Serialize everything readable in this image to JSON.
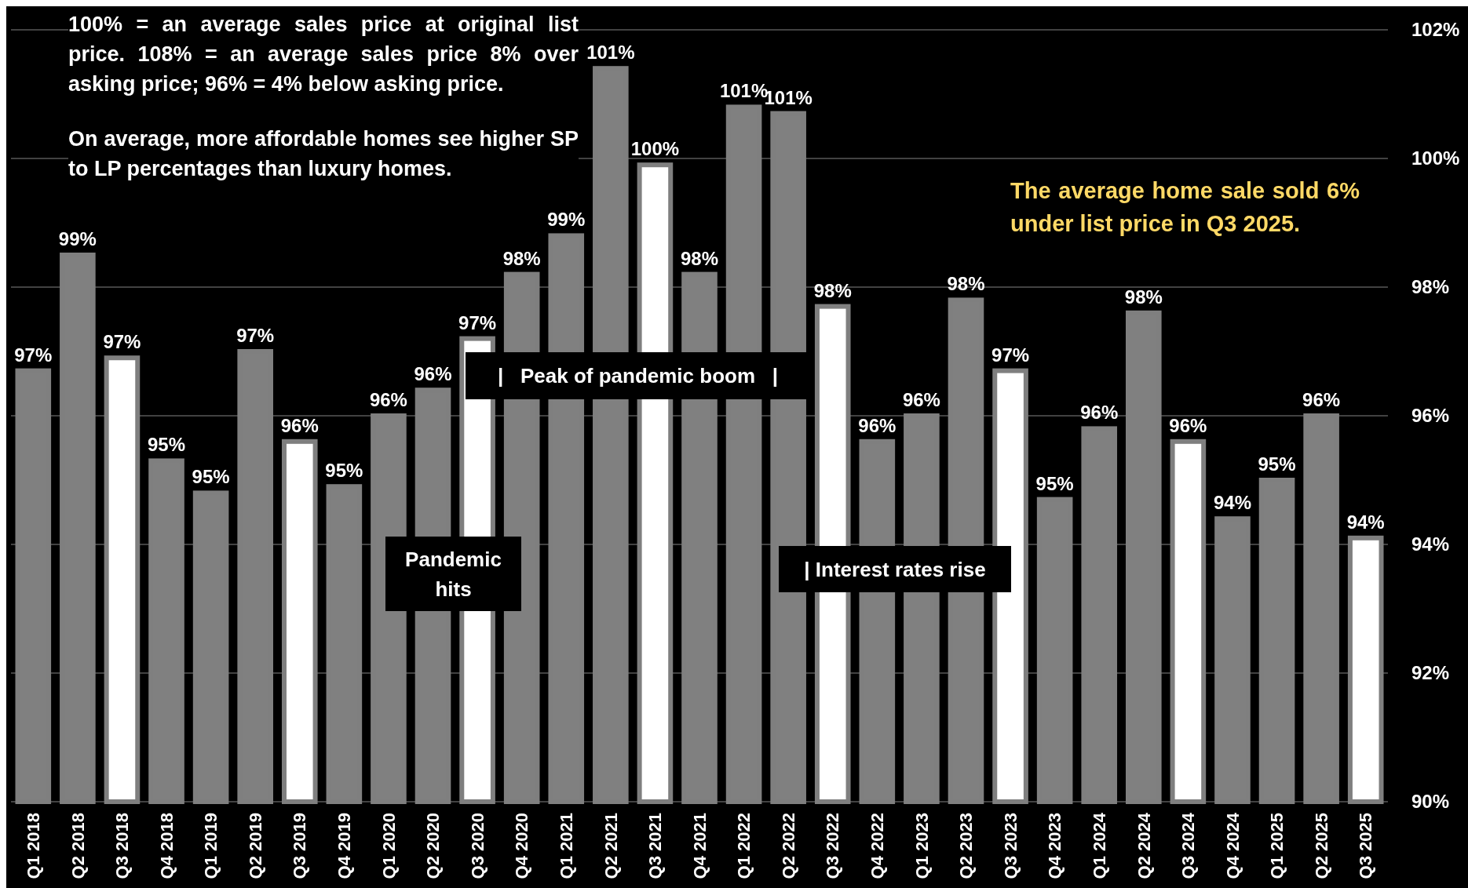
{
  "chart_data": {
    "type": "bar",
    "categories": [
      "Q1 2018",
      "Q2 2018",
      "Q3 2018",
      "Q4 2018",
      "Q1 2019",
      "Q2 2019",
      "Q3 2019",
      "Q4 2019",
      "Q1 2020",
      "Q2 2020",
      "Q3 2020",
      "Q4 2020",
      "Q1 2021",
      "Q2 2021",
      "Q3 2021",
      "Q4 2021",
      "Q1 2022",
      "Q2 2022",
      "Q3 2022",
      "Q4 2022",
      "Q1 2023",
      "Q2 2023",
      "Q3 2023",
      "Q4 2023",
      "Q1 2024",
      "Q2 2024",
      "Q3 2024",
      "Q4 2024",
      "Q1 2025",
      "Q2 2025",
      "Q3 2025"
    ],
    "values": [
      96.7,
      98.5,
      96.9,
      95.3,
      94.8,
      97.0,
      95.6,
      94.9,
      96.0,
      96.4,
      97.2,
      98.2,
      98.8,
      101.4,
      99.9,
      98.2,
      100.8,
      100.7,
      97.7,
      95.6,
      96.0,
      97.8,
      96.7,
      94.7,
      95.8,
      97.6,
      95.6,
      94.4,
      95.0,
      96.0,
      94.1
    ],
    "value_labels": [
      "97%",
      "99%",
      "97%",
      "95%",
      "95%",
      "97%",
      "96%",
      "95%",
      "96%",
      "96%",
      "97%",
      "98%",
      "99%",
      "101%",
      "100%",
      "98%",
      "101%",
      "101%",
      "98%",
      "96%",
      "96%",
      "98%",
      "97%",
      "95%",
      "96%",
      "98%",
      "96%",
      "94%",
      "95%",
      "96%",
      "94%"
    ],
    "colors": [
      "#808080",
      "#808080",
      "#ffffff",
      "#808080",
      "#808080",
      "#808080",
      "#ffffff",
      "#808080",
      "#808080",
      "#808080",
      "#ffffff",
      "#808080",
      "#808080",
      "#808080",
      "#ffffff",
      "#808080",
      "#808080",
      "#808080",
      "#ffffff",
      "#808080",
      "#808080",
      "#808080",
      "#ffffff",
      "#808080",
      "#808080",
      "#808080",
      "#ffffff",
      "#808080",
      "#808080",
      "#808080",
      "#ffffff"
    ],
    "ylim": [
      90,
      102
    ],
    "yticks": [
      {
        "value": 90,
        "label": "90%"
      },
      {
        "value": 92,
        "label": "92%"
      },
      {
        "value": 94,
        "label": "94%"
      },
      {
        "value": 96,
        "label": "96%"
      },
      {
        "value": 98,
        "label": "98%"
      },
      {
        "value": 100,
        "label": "100%"
      },
      {
        "value": 102,
        "label": "102%"
      }
    ],
    "grid": "y",
    "annotations": [
      "100% = an average sales price at original list price. 108% = an average sales price 8% over asking price; 96% = 4% below asking price.",
      "On average, more affordable homes see higher SP to LP percentages than luxury homes.",
      "The average home sale sold 6% under list price in Q3 2025.",
      "Pandemic hits",
      "|   Peak of pandemic boom   |",
      "| Interest rates rise"
    ]
  }
}
